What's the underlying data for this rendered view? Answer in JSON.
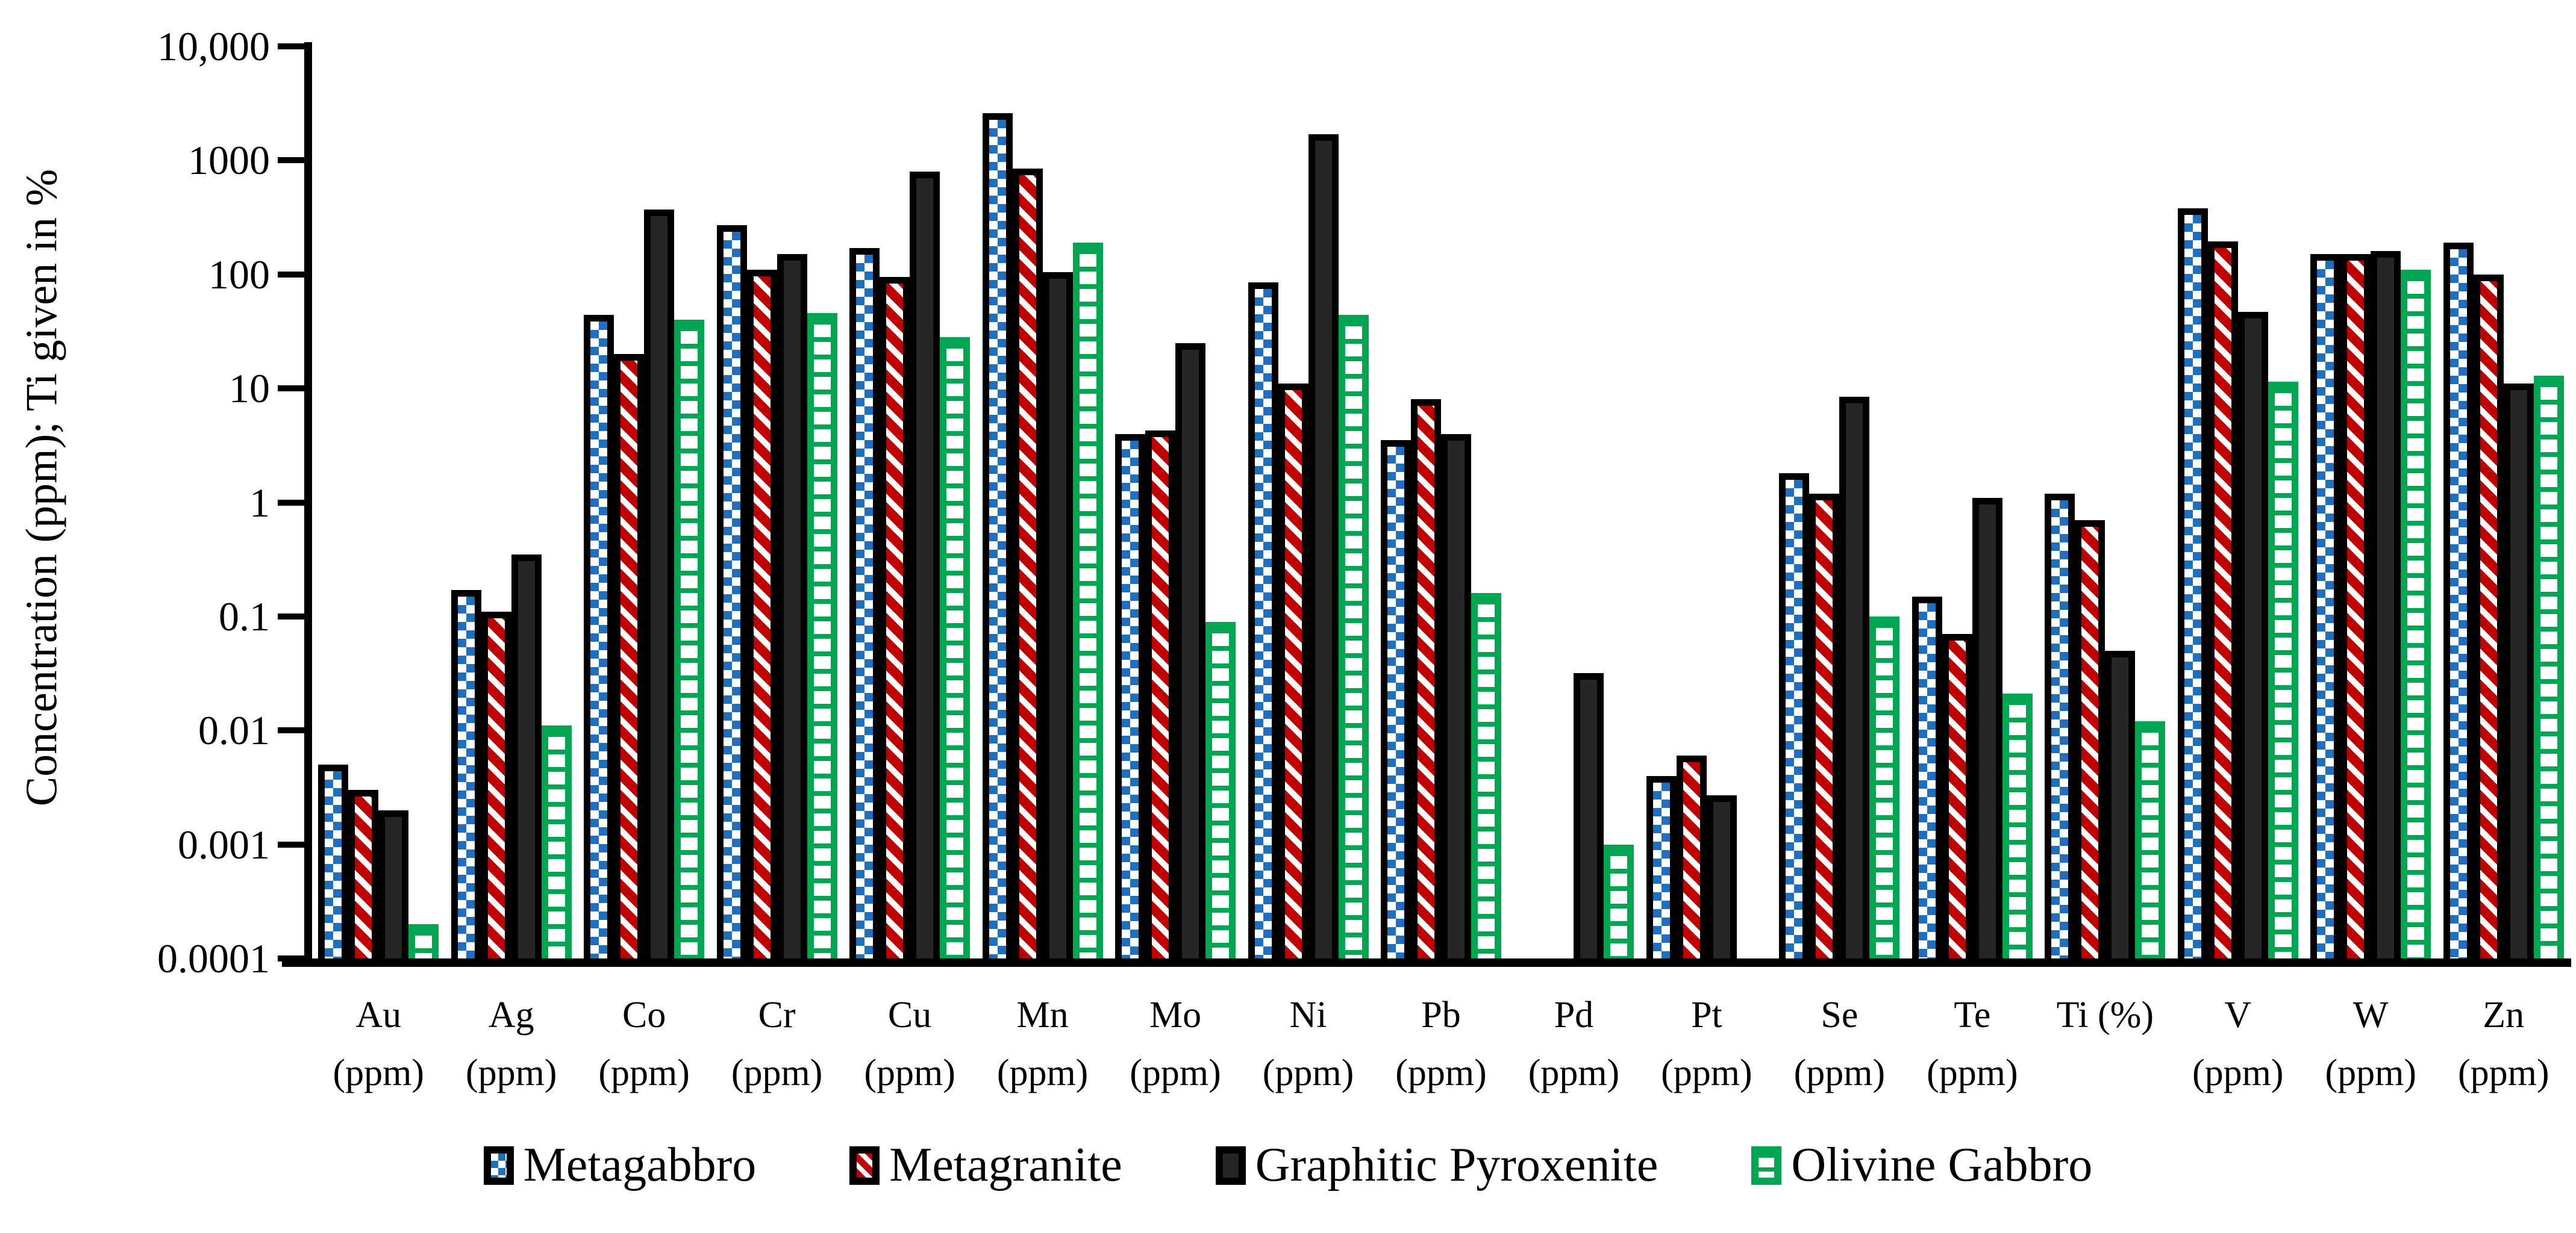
{
  "colors": {
    "metagabbro_blue": "#1f6fbf",
    "metagranite_red": "#c00000",
    "pyroxenite_black": "#262626",
    "olivine_green": "#00a651",
    "axis_ink": "#000000",
    "background": "#ffffff"
  },
  "chart_data": {
    "type": "bar",
    "y_scale": "log",
    "title": "",
    "xlabel": "",
    "ylabel": "Concentration (ppm); Ti given in %",
    "ylim": [
      0.0001,
      10000
    ],
    "grid": false,
    "legend_position": "bottom",
    "y_ticks": [
      "10,000",
      "1000",
      "100",
      "10",
      "1",
      "0.1",
      "0.01",
      "0.001",
      "0.0001"
    ],
    "y_tick_values": [
      10000,
      1000,
      100,
      10,
      1,
      0.1,
      0.01,
      0.001,
      0.0001
    ],
    "categories": [
      {
        "label": "Au",
        "unit": "(ppm)"
      },
      {
        "label": "Ag",
        "unit": "(ppm)"
      },
      {
        "label": "Co",
        "unit": "(ppm)"
      },
      {
        "label": "Cr",
        "unit": "(ppm)"
      },
      {
        "label": "Cu",
        "unit": "(ppm)"
      },
      {
        "label": "Mn",
        "unit": "(ppm)"
      },
      {
        "label": "Mo",
        "unit": "(ppm)"
      },
      {
        "label": "Ni",
        "unit": "(ppm)"
      },
      {
        "label": "Pb",
        "unit": "(ppm)"
      },
      {
        "label": "Pd",
        "unit": "(ppm)"
      },
      {
        "label": "Pt",
        "unit": "(ppm)"
      },
      {
        "label": "Se",
        "unit": "(ppm)"
      },
      {
        "label": "Te",
        "unit": "(ppm)"
      },
      {
        "label": "Ti (%)",
        "unit": ""
      },
      {
        "label": "V",
        "unit": "(ppm)"
      },
      {
        "label": "W",
        "unit": "(ppm)"
      },
      {
        "label": "Zn",
        "unit": "(ppm)"
      }
    ],
    "series": [
      {
        "name": "Metagabbro",
        "pattern": "checker",
        "color": "#1f6fbf",
        "values": [
          0.005,
          0.17,
          44,
          270,
          170,
          2600,
          4.0,
          85,
          3.5,
          null,
          0.004,
          1.8,
          0.15,
          1.2,
          380,
          150,
          190
        ]
      },
      {
        "name": "Metagranite",
        "pattern": "stripes",
        "color": "#c00000",
        "values": [
          0.003,
          0.11,
          20,
          110,
          95,
          850,
          4.3,
          11,
          8,
          null,
          0.006,
          1.2,
          0.07,
          0.7,
          195,
          150,
          100
        ]
      },
      {
        "name": "Graphitic Pyroxenite",
        "pattern": "solid",
        "color": "#262626",
        "values": [
          0.002,
          0.35,
          370,
          150,
          800,
          105,
          25,
          1700,
          4,
          0.032,
          0.0027,
          8.5,
          1.1,
          0.05,
          47,
          160,
          11
        ]
      },
      {
        "name": "Olivine Gabbro",
        "pattern": "rungs",
        "color": "#00a651",
        "values": [
          0.0002,
          0.011,
          40,
          46,
          28,
          190,
          0.09,
          44,
          0.16,
          0.001,
          null,
          0.1,
          0.021,
          0.012,
          11.5,
          110,
          13
        ]
      }
    ]
  }
}
